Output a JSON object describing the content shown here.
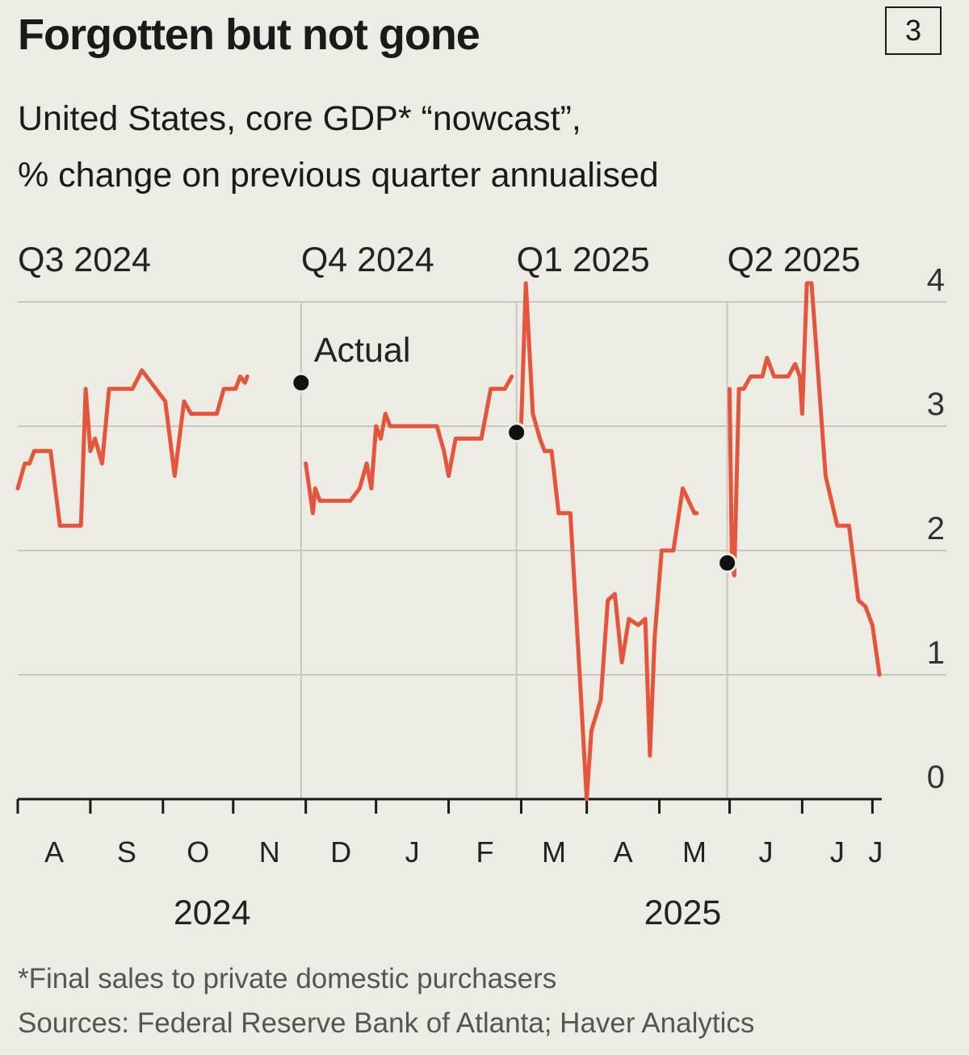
{
  "header": {
    "title": "Forgotten but not gone",
    "badge": "3",
    "subtitle_line1": "United States, core GDP* “nowcast”,",
    "subtitle_line2": "% change on previous quarter annualised"
  },
  "footer": {
    "note": "*Final sales to private domestic purchasers",
    "source": "Sources: Federal Reserve Bank of Atlanta; Haver Analytics"
  },
  "colors": {
    "line": "#e5553b",
    "grid": "#c8c7c0",
    "axis": "#1a1a1a",
    "background": "#ecebe4"
  },
  "chart_data": {
    "type": "line",
    "title": "Forgotten but not gone",
    "ylim": [
      0,
      4
    ],
    "y_ticks": [
      "0",
      "1",
      "2",
      "3",
      "4"
    ],
    "y_axis_side": "right",
    "x_range": [
      "2024-07-01",
      "2025-07-05"
    ],
    "months": [
      {
        "label": "A",
        "date": "2024-08-01"
      },
      {
        "label": "S",
        "date": "2024-09-01"
      },
      {
        "label": "O",
        "date": "2024-10-01"
      },
      {
        "label": "N",
        "date": "2024-11-01"
      },
      {
        "label": "D",
        "date": "2024-12-01"
      },
      {
        "label": "J",
        "date": "2025-01-01"
      },
      {
        "label": "F",
        "date": "2025-02-01"
      },
      {
        "label": "M",
        "date": "2025-03-01"
      },
      {
        "label": "A",
        "date": "2025-04-01"
      },
      {
        "label": "M",
        "date": "2025-05-01"
      },
      {
        "label": "J",
        "date": "2025-06-01"
      },
      {
        "label": "J",
        "date": "2025-07-01"
      }
    ],
    "years": [
      {
        "label": "2024",
        "date": "2024-09-22"
      },
      {
        "label": "2025",
        "date": "2025-04-11"
      }
    ],
    "quarters": [
      {
        "label": "Q3 2024",
        "start": "2024-07-01"
      },
      {
        "label": "Q4 2024",
        "start": "2024-10-30"
      },
      {
        "label": "Q1 2025",
        "start": "2025-01-30"
      },
      {
        "label": "Q2 2025",
        "start": "2025-04-30"
      }
    ],
    "actual_label": "Actual",
    "actual_points": [
      {
        "date": "2024-10-30",
        "value": 3.35
      },
      {
        "date": "2025-01-30",
        "value": 2.95
      },
      {
        "date": "2025-04-30",
        "value": 1.9
      }
    ],
    "series": [
      {
        "values": [
          [
            "2024-07-01",
            2.5
          ],
          [
            "2024-07-04",
            2.7
          ],
          [
            "2024-07-06",
            2.7
          ],
          [
            "2024-07-08",
            2.8
          ],
          [
            "2024-07-15",
            2.8
          ],
          [
            "2024-07-19",
            2.2
          ],
          [
            "2024-07-28",
            2.2
          ],
          [
            "2024-07-30",
            3.3
          ],
          [
            "2024-08-01",
            2.8
          ],
          [
            "2024-08-03",
            2.9
          ],
          [
            "2024-08-06",
            2.7
          ],
          [
            "2024-08-09",
            3.3
          ],
          [
            "2024-08-19",
            3.3
          ],
          [
            "2024-08-23",
            3.45
          ],
          [
            "2024-08-27",
            3.35
          ],
          [
            "2024-08-29",
            3.3
          ],
          [
            "2024-09-02",
            3.2
          ],
          [
            "2024-09-06",
            2.6
          ],
          [
            "2024-09-10",
            3.2
          ],
          [
            "2024-09-13",
            3.1
          ],
          [
            "2024-09-24",
            3.1
          ],
          [
            "2024-09-27",
            3.3
          ],
          [
            "2024-10-02",
            3.3
          ],
          [
            "2024-10-04",
            3.4
          ],
          [
            "2024-10-06",
            3.35
          ],
          [
            "2024-10-07",
            3.4
          ]
        ]
      },
      {
        "values": [
          [
            "2024-11-01",
            2.7
          ],
          [
            "2024-11-04",
            2.3
          ],
          [
            "2024-11-05",
            2.5
          ],
          [
            "2024-11-07",
            2.4
          ],
          [
            "2024-11-20",
            2.4
          ],
          [
            "2024-11-24",
            2.5
          ],
          [
            "2024-11-27",
            2.7
          ],
          [
            "2024-11-29",
            2.5
          ],
          [
            "2024-12-01",
            3.0
          ],
          [
            "2024-12-03",
            2.9
          ],
          [
            "2024-12-05",
            3.1
          ],
          [
            "2024-12-07",
            3.0
          ],
          [
            "2024-12-27",
            3.0
          ],
          [
            "2024-12-30",
            2.8
          ],
          [
            "2025-01-01",
            2.6
          ],
          [
            "2025-01-04",
            2.9
          ],
          [
            "2025-01-15",
            2.9
          ],
          [
            "2025-01-19",
            3.3
          ],
          [
            "2025-01-25",
            3.3
          ],
          [
            "2025-01-28",
            3.4
          ]
        ]
      },
      {
        "values": [
          [
            "2025-02-01",
            3.0
          ],
          [
            "2025-02-03",
            4.15
          ],
          [
            "2025-02-06",
            3.1
          ],
          [
            "2025-02-09",
            2.9
          ],
          [
            "2025-02-11",
            2.8
          ],
          [
            "2025-02-14",
            2.8
          ],
          [
            "2025-02-17",
            2.3
          ],
          [
            "2025-02-22",
            2.3
          ],
          [
            "2025-02-26",
            1.0
          ],
          [
            "2025-03-01",
            0.0
          ],
          [
            "2025-03-03",
            0.55
          ],
          [
            "2025-03-07",
            0.8
          ],
          [
            "2025-03-10",
            1.6
          ],
          [
            "2025-03-13",
            1.65
          ],
          [
            "2025-03-16",
            1.1
          ],
          [
            "2025-03-19",
            1.45
          ],
          [
            "2025-03-23",
            1.4
          ],
          [
            "2025-03-26",
            1.45
          ],
          [
            "2025-03-28",
            0.35
          ],
          [
            "2025-03-30",
            1.3
          ],
          [
            "2025-04-02",
            2.0
          ],
          [
            "2025-04-07",
            2.0
          ],
          [
            "2025-04-11",
            2.5
          ],
          [
            "2025-04-16",
            2.3
          ],
          [
            "2025-04-17",
            2.3
          ]
        ]
      },
      {
        "values": [
          [
            "2025-05-01",
            3.3
          ],
          [
            "2025-05-02",
            1.9
          ],
          [
            "2025-05-03",
            1.8
          ],
          [
            "2025-05-05",
            3.3
          ],
          [
            "2025-05-07",
            3.3
          ],
          [
            "2025-05-10",
            3.4
          ],
          [
            "2025-05-15",
            3.4
          ],
          [
            "2025-05-17",
            3.55
          ],
          [
            "2025-05-20",
            3.4
          ],
          [
            "2025-05-26",
            3.4
          ],
          [
            "2025-05-29",
            3.5
          ],
          [
            "2025-05-31",
            3.4
          ],
          [
            "2025-06-01",
            3.1
          ],
          [
            "2025-06-03",
            4.15
          ],
          [
            "2025-06-05",
            4.15
          ],
          [
            "2025-06-11",
            2.6
          ],
          [
            "2025-06-16",
            2.2
          ],
          [
            "2025-06-21",
            2.2
          ],
          [
            "2025-06-25",
            1.6
          ],
          [
            "2025-06-28",
            1.55
          ],
          [
            "2025-07-01",
            1.4
          ],
          [
            "2025-07-04",
            1.0
          ]
        ]
      }
    ]
  }
}
